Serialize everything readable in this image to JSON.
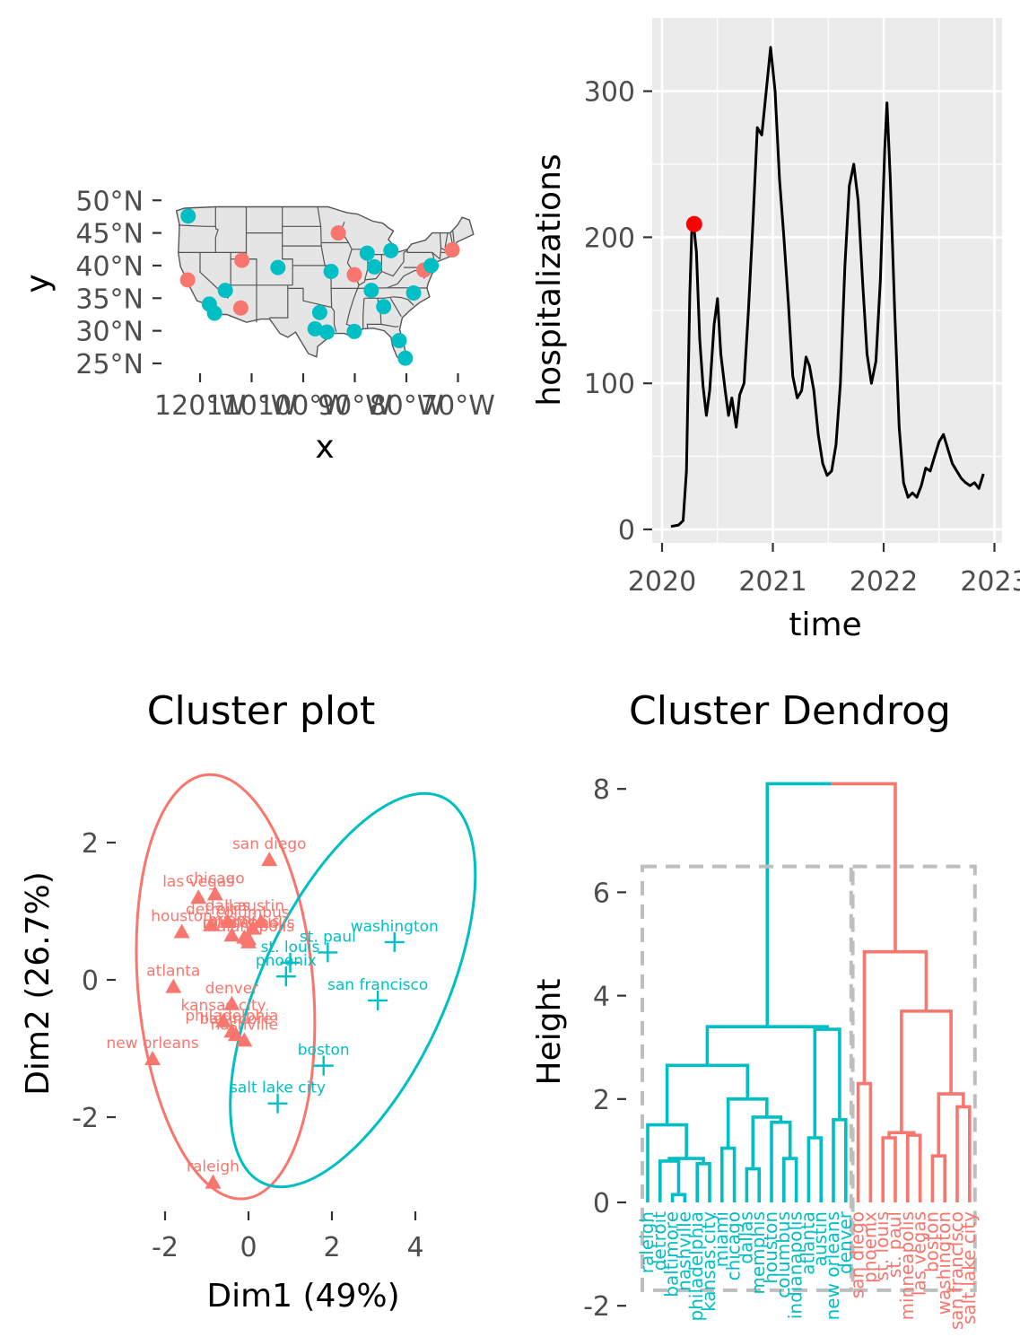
{
  "colors": {
    "cluster1": "#F8766D",
    "cluster2": "#00BFC4",
    "panel_bg": "#EBEBEB",
    "grid": "#FFFFFF",
    "line": "#000000",
    "highlight": "#FF0000",
    "state_fill": "#E5E5E5",
    "box": "#BEBEBE"
  },
  "chart_data": [
    {
      "type": "scatter",
      "xlabel": "x",
      "ylabel": "y",
      "ytick_labels": [
        "25°N",
        "30°N",
        "35°N",
        "40°N",
        "45°N",
        "50°N"
      ],
      "xtick_labels": [
        "120°W",
        "110°W",
        "100°W",
        "90°W",
        "80°W",
        "70°W"
      ],
      "ylim": [
        24,
        50
      ],
      "xlim": [
        -125,
        -66
      ],
      "basemap": "contiguous United States with state borders",
      "points": [
        {
          "lon": -122.3,
          "lat": 47.6,
          "cluster": 2
        },
        {
          "lon": -122.4,
          "lat": 37.8,
          "cluster": 1
        },
        {
          "lon": -118.2,
          "lat": 34.1,
          "cluster": 2
        },
        {
          "lon": -117.2,
          "lat": 32.7,
          "cluster": 2
        },
        {
          "lon": -115.1,
          "lat": 36.2,
          "cluster": 2
        },
        {
          "lon": -111.9,
          "lat": 40.8,
          "cluster": 1
        },
        {
          "lon": -112.1,
          "lat": 33.5,
          "cluster": 1
        },
        {
          "lon": -104.9,
          "lat": 39.7,
          "cluster": 2
        },
        {
          "lon": -93.2,
          "lat": 45.0,
          "cluster": 1
        },
        {
          "lon": -94.6,
          "lat": 39.1,
          "cluster": 2
        },
        {
          "lon": -96.8,
          "lat": 32.8,
          "cluster": 2
        },
        {
          "lon": -97.7,
          "lat": 30.3,
          "cluster": 2
        },
        {
          "lon": -95.4,
          "lat": 29.8,
          "cluster": 2
        },
        {
          "lon": -90.1,
          "lat": 38.6,
          "cluster": 1
        },
        {
          "lon": -87.6,
          "lat": 41.9,
          "cluster": 2
        },
        {
          "lon": -86.2,
          "lat": 39.8,
          "cluster": 2
        },
        {
          "lon": -86.8,
          "lat": 36.2,
          "cluster": 2
        },
        {
          "lon": -90.1,
          "lat": 29.9,
          "cluster": 2
        },
        {
          "lon": -83.0,
          "lat": 42.3,
          "cluster": 2
        },
        {
          "lon": -84.4,
          "lat": 33.7,
          "cluster": 2
        },
        {
          "lon": -78.6,
          "lat": 35.8,
          "cluster": 2
        },
        {
          "lon": -80.2,
          "lat": 25.8,
          "cluster": 2
        },
        {
          "lon": -81.4,
          "lat": 28.5,
          "cluster": 2
        },
        {
          "lon": -76.6,
          "lat": 39.3,
          "cluster": 1
        },
        {
          "lon": -75.2,
          "lat": 40.0,
          "cluster": 2
        },
        {
          "lon": -71.1,
          "lat": 42.4,
          "cluster": 1
        }
      ]
    },
    {
      "type": "line",
      "xlabel": "time",
      "ylabel": "hospitalizations",
      "xtick_labels": [
        "2020",
        "2021",
        "2022",
        "2023"
      ],
      "ytick_labels": [
        "0",
        "100",
        "200",
        "300"
      ],
      "xlim": [
        2019.95,
        2023.0
      ],
      "ylim": [
        -5,
        345
      ],
      "series": [
        {
          "points": [
            [
              2020.08,
              2
            ],
            [
              2020.15,
              3
            ],
            [
              2020.19,
              6
            ],
            [
              2020.22,
              40
            ],
            [
              2020.25,
              160
            ],
            [
              2020.27,
              208
            ],
            [
              2020.29,
              205
            ],
            [
              2020.31,
              190
            ],
            [
              2020.34,
              130
            ],
            [
              2020.37,
              98
            ],
            [
              2020.4,
              78
            ],
            [
              2020.43,
              95
            ],
            [
              2020.47,
              140
            ],
            [
              2020.5,
              158
            ],
            [
              2020.53,
              120
            ],
            [
              2020.57,
              95
            ],
            [
              2020.6,
              78
            ],
            [
              2020.63,
              90
            ],
            [
              2020.67,
              70
            ],
            [
              2020.7,
              92
            ],
            [
              2020.74,
              100
            ],
            [
              2020.78,
              150
            ],
            [
              2020.82,
              210
            ],
            [
              2020.86,
              275
            ],
            [
              2020.9,
              270
            ],
            [
              2020.94,
              300
            ],
            [
              2020.98,
              330
            ],
            [
              2021.02,
              300
            ],
            [
              2021.06,
              240
            ],
            [
              2021.1,
              200
            ],
            [
              2021.14,
              155
            ],
            [
              2021.18,
              105
            ],
            [
              2021.22,
              90
            ],
            [
              2021.26,
              95
            ],
            [
              2021.3,
              118
            ],
            [
              2021.33,
              112
            ],
            [
              2021.37,
              95
            ],
            [
              2021.41,
              65
            ],
            [
              2021.45,
              45
            ],
            [
              2021.49,
              37
            ],
            [
              2021.53,
              40
            ],
            [
              2021.57,
              58
            ],
            [
              2021.61,
              100
            ],
            [
              2021.65,
              180
            ],
            [
              2021.69,
              235
            ],
            [
              2021.73,
              250
            ],
            [
              2021.77,
              225
            ],
            [
              2021.81,
              170
            ],
            [
              2021.85,
              120
            ],
            [
              2021.89,
              100
            ],
            [
              2021.93,
              115
            ],
            [
              2021.97,
              170
            ],
            [
              2022.01,
              260
            ],
            [
              2022.03,
              292
            ],
            [
              2022.06,
              240
            ],
            [
              2022.1,
              150
            ],
            [
              2022.14,
              70
            ],
            [
              2022.18,
              32
            ],
            [
              2022.22,
              22
            ],
            [
              2022.26,
              25
            ],
            [
              2022.3,
              22
            ],
            [
              2022.34,
              30
            ],
            [
              2022.38,
              42
            ],
            [
              2022.42,
              40
            ],
            [
              2022.46,
              50
            ],
            [
              2022.5,
              60
            ],
            [
              2022.54,
              65
            ],
            [
              2022.58,
              55
            ],
            [
              2022.62,
              45
            ],
            [
              2022.66,
              40
            ],
            [
              2022.7,
              35
            ],
            [
              2022.74,
              32
            ],
            [
              2022.78,
              30
            ],
            [
              2022.82,
              32
            ],
            [
              2022.86,
              28
            ],
            [
              2022.9,
              38
            ]
          ]
        }
      ],
      "highlight_point": {
        "x": 2020.29,
        "y": 209
      }
    },
    {
      "type": "scatter",
      "title": "Cluster plot",
      "xlabel": "Dim1 (49%)",
      "ylabel": "Dim2 (26.7%)",
      "xtick_labels": [
        "-2",
        "0",
        "2",
        "4"
      ],
      "ytick_labels": [
        "-2",
        "0",
        "2"
      ],
      "xlim": [
        -3.1,
        5.5
      ],
      "ylim": [
        -3.3,
        3.0
      ],
      "points": [
        {
          "label": "san diego",
          "x": 0.5,
          "y": 1.75,
          "cluster": 1
        },
        {
          "label": "chicago",
          "x": -0.8,
          "y": 1.25,
          "cluster": 1
        },
        {
          "label": "las vegas",
          "x": -1.2,
          "y": 1.2,
          "cluster": 1
        },
        {
          "label": "dallas",
          "x": -0.5,
          "y": 0.85,
          "cluster": 1
        },
        {
          "label": "austin",
          "x": 0.3,
          "y": 0.85,
          "cluster": 1
        },
        {
          "label": "detroit",
          "x": -0.9,
          "y": 0.8,
          "cluster": 1
        },
        {
          "label": "columbus",
          "x": 0.1,
          "y": 0.75,
          "cluster": 1
        },
        {
          "label": "minneapolis",
          "x": 0.0,
          "y": 0.6,
          "cluster": 1
        },
        {
          "label": "houston",
          "x": -1.6,
          "y": 0.7,
          "cluster": 1
        },
        {
          "label": "miami",
          "x": -0.4,
          "y": 0.65,
          "cluster": 1
        },
        {
          "label": "memphis",
          "x": -0.1,
          "y": 0.62,
          "cluster": 1
        },
        {
          "label": "indianapolis",
          "x": 0.0,
          "y": 0.55,
          "cluster": 1
        },
        {
          "label": "atlanta",
          "x": -1.8,
          "y": -0.1,
          "cluster": 1
        },
        {
          "label": "denver",
          "x": -0.4,
          "y": -0.35,
          "cluster": 1
        },
        {
          "label": "kansas city",
          "x": -0.6,
          "y": -0.6,
          "cluster": 1
        },
        {
          "label": "philadelphia",
          "x": -0.4,
          "y": -0.75,
          "cluster": 1
        },
        {
          "label": "baltimore",
          "x": -0.3,
          "y": -0.8,
          "cluster": 1
        },
        {
          "label": "nashville",
          "x": -0.1,
          "y": -0.88,
          "cluster": 1
        },
        {
          "label": "new orleans",
          "x": -2.3,
          "y": -1.15,
          "cluster": 1
        },
        {
          "label": "raleigh",
          "x": -0.85,
          "y": -2.95,
          "cluster": 1
        },
        {
          "label": "washington",
          "x": 3.5,
          "y": 0.55,
          "cluster": 2
        },
        {
          "label": "st. paul",
          "x": 1.9,
          "y": 0.4,
          "cluster": 2
        },
        {
          "label": "st. louis",
          "x": 1.0,
          "y": 0.25,
          "cluster": 2
        },
        {
          "label": "phoenix",
          "x": 0.9,
          "y": 0.05,
          "cluster": 2
        },
        {
          "label": "san francisco",
          "x": 3.1,
          "y": -0.3,
          "cluster": 2
        },
        {
          "label": "boston",
          "x": 1.8,
          "y": -1.25,
          "cluster": 2
        },
        {
          "label": "salt lake city",
          "x": 0.7,
          "y": -1.8,
          "cluster": 2
        }
      ],
      "ellipses": [
        {
          "cluster": 1,
          "cx": -0.55,
          "cy": -0.1,
          "rx": 2.1,
          "ry": 3.1,
          "angle_deg": -5
        },
        {
          "cluster": 2,
          "cx": 2.5,
          "cy": -0.15,
          "rx": 2.2,
          "ry": 3.1,
          "angle_deg": 25
        }
      ]
    },
    {
      "type": "dendrogram",
      "title": "Cluster Dendrog",
      "ylabel": "Height",
      "ytick_labels": [
        "-2",
        "0",
        "2",
        "4",
        "6",
        "8"
      ],
      "ylim": [
        -2,
        8.3
      ],
      "leaf_count": 27,
      "left_group_leaf_count": 17,
      "root_height": 8.1,
      "cut_height": 6.5,
      "leaf_labels": [
        "raleigh",
        "detroit",
        "baltimore",
        "nashville",
        "philadelphia",
        "kansas city",
        "miami",
        "chicago",
        "dallas",
        "memphis",
        "houston",
        "columbus",
        "indianapolis",
        "atlanta",
        "austin",
        "new orleans",
        "denver",
        "san diego",
        "phoenix",
        "st. louis",
        "st. paul",
        "minneapolis",
        "las vegas",
        "boston",
        "washington",
        "san francisco",
        "salt lake city"
      ]
    }
  ]
}
